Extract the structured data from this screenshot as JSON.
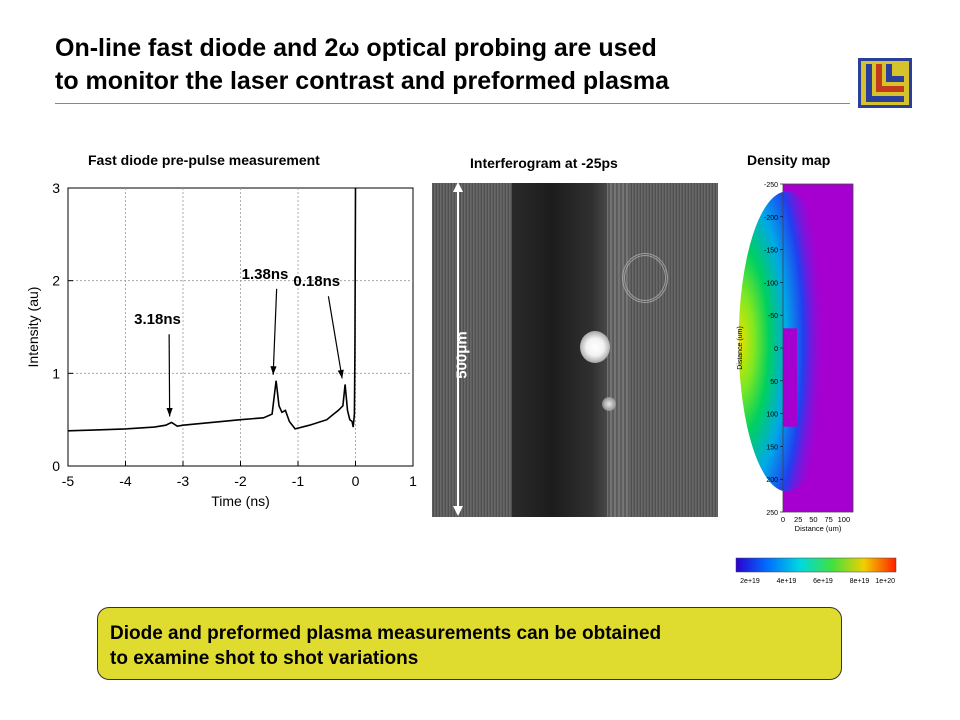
{
  "slide": {
    "title_line1": "On-line fast diode and 2ω optical probing are used",
    "title_line2": "to monitor the laser contrast and preformed plasma",
    "footer_line1": "Diode and preformed plasma measurements can be obtained",
    "footer_line2": "to examine shot to shot variations"
  },
  "panels": {
    "diode_label": "Fast diode pre-pulse measurement",
    "interferogram_label": "Interferogram at -25ps",
    "density_label": "Density map",
    "scale_bar_label": "500μm"
  },
  "chart_data": [
    {
      "type": "line",
      "title": "Fast diode pre-pulse measurement",
      "xlabel": "Time (ns)",
      "ylabel": "Intensity (au)",
      "xlim": [
        -5,
        1
      ],
      "ylim": [
        0,
        3
      ],
      "xticks": [
        "-5",
        "-4",
        "-3",
        "-2",
        "-1",
        "0",
        "1"
      ],
      "yticks": [
        "0",
        "1",
        "2",
        "3"
      ],
      "grid": true,
      "series": [
        {
          "x": [
            -5,
            -4.5,
            -4.0,
            -3.5,
            -3.3,
            -3.2,
            -3.1,
            -3.0,
            -2.5,
            -2.0,
            -1.6,
            -1.45,
            -1.38,
            -1.33,
            -1.28,
            -1.22,
            -1.15,
            -1.05,
            -0.8,
            -0.5,
            -0.4,
            -0.3,
            -0.22,
            -0.18,
            -0.14,
            -0.1,
            -0.06,
            -0.04,
            -0.02,
            -0.01,
            0.0
          ],
          "y": [
            0.38,
            0.39,
            0.4,
            0.42,
            0.44,
            0.47,
            0.43,
            0.44,
            0.47,
            0.5,
            0.52,
            0.56,
            0.92,
            0.65,
            0.58,
            0.6,
            0.48,
            0.4,
            0.44,
            0.5,
            0.55,
            0.6,
            0.65,
            0.88,
            0.6,
            0.5,
            0.48,
            0.42,
            0.56,
            1.2,
            3.0
          ]
        }
      ],
      "annotations": [
        {
          "text": "3.18ns",
          "x": -3.18,
          "y": 0.47
        },
        {
          "text": "1.38ns",
          "x": -1.38,
          "y": 0.92
        },
        {
          "text": "0.18ns",
          "x": -0.18,
          "y": 0.88
        }
      ]
    },
    {
      "type": "heatmap",
      "title": "Density map",
      "xlabel": "Distance (um)",
      "ylabel": "Distance (um)",
      "xticks": [
        "0",
        "25",
        "50",
        "75",
        "100"
      ],
      "yticks": [
        "-250",
        "-200",
        "-150",
        "-100",
        "-50",
        "0",
        "50",
        "100",
        "150",
        "200",
        "250"
      ],
      "colorbar_ticks": [
        "2e+19",
        "4e+19",
        "6e+19",
        "8e+19",
        "1e+20"
      ]
    }
  ]
}
